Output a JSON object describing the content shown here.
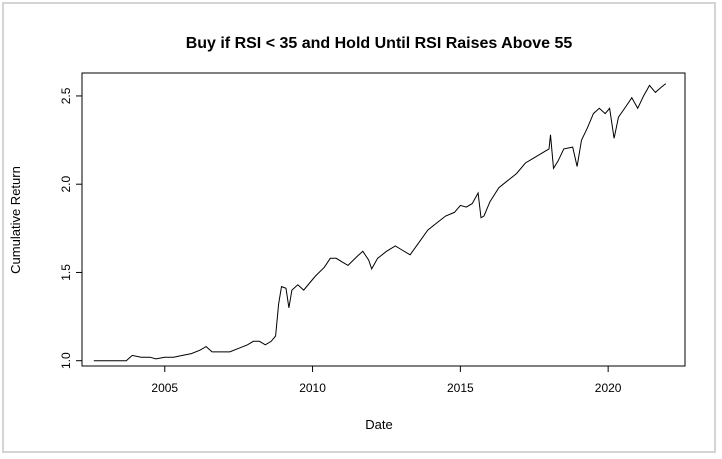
{
  "chart_data": {
    "type": "line",
    "title": "Buy if RSI < 35 and Hold Until RSI Raises Above 55",
    "xlabel": "Date",
    "ylabel": "Cumulative Return",
    "xlim": [
      2002.2,
      2022.6
    ],
    "ylim": [
      0.97,
      2.63
    ],
    "x_ticks": [
      2005,
      2010,
      2015,
      2020
    ],
    "x_tick_labels": [
      "2005",
      "2010",
      "2015",
      "2020"
    ],
    "y_ticks": [
      1.0,
      1.5,
      2.0,
      2.5
    ],
    "y_tick_labels": [
      "1.0",
      "1.5",
      "2.0",
      "2.5"
    ],
    "grid": false,
    "series": [
      {
        "color": "#000000",
        "points": [
          [
            2002.6,
            1.0
          ],
          [
            2003.7,
            1.0
          ],
          [
            2003.9,
            1.03
          ],
          [
            2004.2,
            1.02
          ],
          [
            2004.5,
            1.02
          ],
          [
            2004.7,
            1.01
          ],
          [
            2005.0,
            1.02
          ],
          [
            2005.3,
            1.02
          ],
          [
            2005.6,
            1.03
          ],
          [
            2005.9,
            1.04
          ],
          [
            2006.2,
            1.06
          ],
          [
            2006.4,
            1.08
          ],
          [
            2006.6,
            1.05
          ],
          [
            2006.9,
            1.05
          ],
          [
            2007.2,
            1.05
          ],
          [
            2007.5,
            1.07
          ],
          [
            2007.8,
            1.09
          ],
          [
            2008.0,
            1.11
          ],
          [
            2008.2,
            1.11
          ],
          [
            2008.4,
            1.09
          ],
          [
            2008.6,
            1.11
          ],
          [
            2008.75,
            1.14
          ],
          [
            2008.85,
            1.32
          ],
          [
            2008.95,
            1.42
          ],
          [
            2009.1,
            1.41
          ],
          [
            2009.2,
            1.3
          ],
          [
            2009.3,
            1.4
          ],
          [
            2009.5,
            1.43
          ],
          [
            2009.7,
            1.4
          ],
          [
            2009.9,
            1.44
          ],
          [
            2010.1,
            1.48
          ],
          [
            2010.4,
            1.53
          ],
          [
            2010.6,
            1.58
          ],
          [
            2010.8,
            1.58
          ],
          [
            2011.0,
            1.56
          ],
          [
            2011.2,
            1.54
          ],
          [
            2011.5,
            1.59
          ],
          [
            2011.7,
            1.62
          ],
          [
            2011.9,
            1.57
          ],
          [
            2012.0,
            1.52
          ],
          [
            2012.2,
            1.58
          ],
          [
            2012.5,
            1.62
          ],
          [
            2012.8,
            1.65
          ],
          [
            2013.0,
            1.63
          ],
          [
            2013.3,
            1.6
          ],
          [
            2013.6,
            1.67
          ],
          [
            2013.9,
            1.74
          ],
          [
            2014.2,
            1.78
          ],
          [
            2014.5,
            1.82
          ],
          [
            2014.8,
            1.84
          ],
          [
            2015.0,
            1.88
          ],
          [
            2015.2,
            1.87
          ],
          [
            2015.4,
            1.89
          ],
          [
            2015.6,
            1.95
          ],
          [
            2015.7,
            1.81
          ],
          [
            2015.8,
            1.82
          ],
          [
            2016.0,
            1.9
          ],
          [
            2016.3,
            1.98
          ],
          [
            2016.6,
            2.02
          ],
          [
            2016.9,
            2.06
          ],
          [
            2017.2,
            2.12
          ],
          [
            2017.5,
            2.15
          ],
          [
            2017.8,
            2.18
          ],
          [
            2018.0,
            2.2
          ],
          [
            2018.05,
            2.28
          ],
          [
            2018.15,
            2.09
          ],
          [
            2018.3,
            2.13
          ],
          [
            2018.5,
            2.2
          ],
          [
            2018.8,
            2.21
          ],
          [
            2018.95,
            2.1
          ],
          [
            2019.1,
            2.25
          ],
          [
            2019.3,
            2.32
          ],
          [
            2019.5,
            2.4
          ],
          [
            2019.7,
            2.43
          ],
          [
            2019.9,
            2.4
          ],
          [
            2020.05,
            2.43
          ],
          [
            2020.2,
            2.26
          ],
          [
            2020.35,
            2.38
          ],
          [
            2020.6,
            2.44
          ],
          [
            2020.8,
            2.49
          ],
          [
            2021.0,
            2.43
          ],
          [
            2021.2,
            2.5
          ],
          [
            2021.4,
            2.56
          ],
          [
            2021.6,
            2.52
          ],
          [
            2021.8,
            2.55
          ],
          [
            2021.95,
            2.57
          ]
        ]
      }
    ]
  }
}
